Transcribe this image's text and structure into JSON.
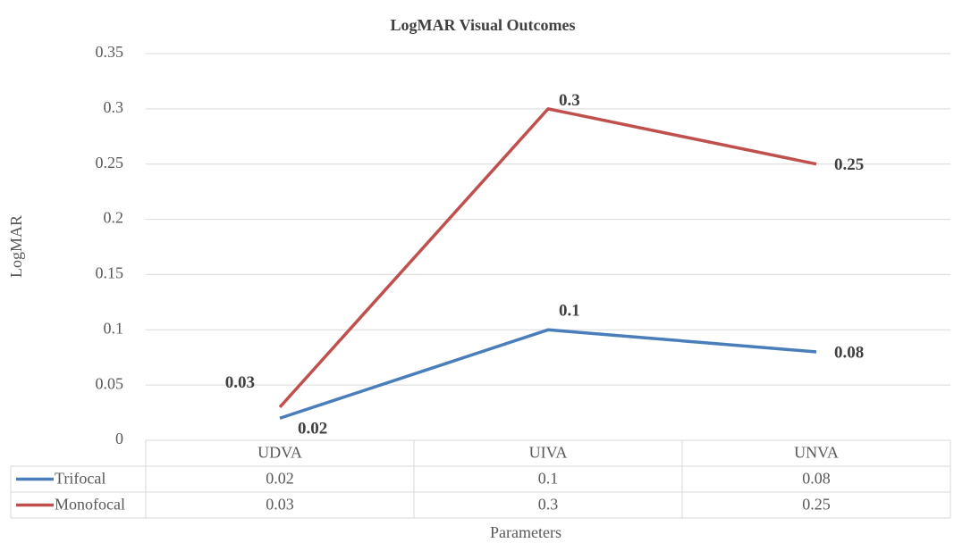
{
  "chart_data": {
    "type": "line",
    "title": "LogMAR Visual Outcomes",
    "x_label": "Parameters",
    "y_label": "LogMAR",
    "categories": [
      "UDVA",
      "UIVA",
      "UNVA"
    ],
    "series": [
      {
        "name": "Trifocal",
        "color": "#4a7ebb",
        "values": [
          0.02,
          0.1,
          0.08
        ]
      },
      {
        "name": "Monofocal",
        "color": "#c0504d",
        "values": [
          0.03,
          0.3,
          0.25
        ]
      }
    ],
    "ylim": [
      0,
      0.35
    ],
    "yticks": [
      0,
      0.05,
      0.1,
      0.15,
      0.2,
      0.25,
      0.3,
      0.35
    ],
    "grid": true,
    "data_table": true
  }
}
